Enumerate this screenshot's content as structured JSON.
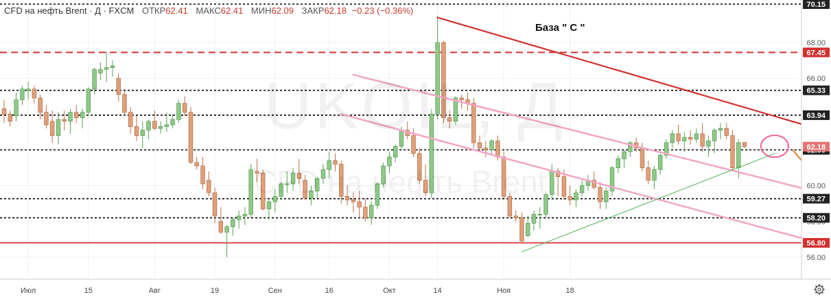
{
  "header": {
    "symbol": "CFD на нефть Brent · Д · FXCM",
    "open_label": "ОТКР",
    "open_value": "62.41",
    "high_label": "МАКС",
    "high_value": "62.41",
    "low_label": "МИН",
    "low_value": "62.09",
    "close_label": "ЗАКР",
    "close_value": "62.18",
    "change": "−0.23 (−0.36%)"
  },
  "watermark": {
    "ticker": "UKOIL, Д",
    "name": "CFD на нефть Brent"
  },
  "annotation": "База \" С \"",
  "colors": {
    "up": "#8fc98a",
    "down": "#e0a07a",
    "candle_border_up": "#5a9f55",
    "candle_border_down": "#b8704a",
    "resistance": "#d32f2f",
    "channel": "#f4a6c6",
    "support_trend": "#4caf50",
    "arrow": "#e67e22",
    "grid": "#f0f0f0"
  },
  "chart_data": {
    "type": "candlestick",
    "title": "CFD на нефть Brent · Д · FXCM",
    "ylim": [
      55.0,
      70.15
    ],
    "y_ticks": [
      56.0,
      58.0,
      60.0,
      62.0,
      64.0,
      66.0,
      68.0
    ],
    "x_tick_labels": [
      {
        "label": "Июл",
        "index": 4
      },
      {
        "label": "15",
        "index": 14
      },
      {
        "label": "Авг",
        "index": 25
      },
      {
        "label": "19",
        "index": 35
      },
      {
        "label": "Сен",
        "index": 45
      },
      {
        "label": "16",
        "index": 54
      },
      {
        "label": "Окт",
        "index": 64
      },
      {
        "label": "14",
        "index": 72
      },
      {
        "label": "Ноя",
        "index": 83
      },
      {
        "label": "18",
        "index": 94
      }
    ],
    "horizontal_levels": [
      {
        "value": 70.15,
        "style": "dotted",
        "color": "#000000",
        "label": "70.15"
      },
      {
        "value": 67.45,
        "style": "dashed",
        "color": "#d32f2f",
        "label": "67.45"
      },
      {
        "value": 65.33,
        "style": "dotted",
        "color": "#000000",
        "label": "65.33"
      },
      {
        "value": 63.94,
        "style": "dotted",
        "color": "#000000",
        "label": "63.94"
      },
      {
        "value": 62.0,
        "style": "dotted",
        "color": "#000000",
        "label": "62.00"
      },
      {
        "value": 59.27,
        "style": "dotted",
        "color": "#000000",
        "label": "59.27"
      },
      {
        "value": 58.2,
        "style": "dotted",
        "color": "#000000",
        "label": "58.20"
      },
      {
        "value": 56.8,
        "style": "solid",
        "color": "#d32f2f",
        "label": "56.80"
      }
    ],
    "last_price": {
      "value": 62.18,
      "label": "62.18"
    },
    "candles": [
      [
        64.3,
        64.8,
        63.5,
        64.0
      ],
      [
        64.0,
        64.2,
        63.3,
        63.6
      ],
      [
        63.9,
        65.2,
        63.6,
        64.8
      ],
      [
        64.8,
        65.6,
        64.5,
        65.4
      ],
      [
        65.3,
        65.8,
        64.8,
        65.4
      ],
      [
        65.4,
        65.6,
        64.6,
        64.9
      ],
      [
        64.9,
        65.1,
        63.7,
        64.1
      ],
      [
        64.1,
        64.5,
        63.2,
        63.4
      ],
      [
        63.6,
        64.2,
        62.4,
        62.8
      ],
      [
        62.8,
        64.1,
        62.3,
        63.7
      ],
      [
        63.7,
        64.2,
        63.1,
        63.6
      ],
      [
        63.6,
        64.3,
        62.9,
        64.1
      ],
      [
        64.1,
        64.5,
        63.5,
        63.8
      ],
      [
        63.8,
        64.3,
        63.2,
        64.1
      ],
      [
        64.1,
        65.5,
        63.9,
        65.4
      ],
      [
        65.4,
        66.6,
        65.1,
        66.5
      ],
      [
        66.3,
        66.9,
        65.9,
        66.5
      ],
      [
        66.5,
        67.5,
        65.8,
        66.6
      ],
      [
        66.6,
        67.0,
        66.1,
        66.7
      ],
      [
        66.0,
        66.3,
        64.7,
        65.1
      ],
      [
        65.1,
        65.3,
        63.9,
        64.1
      ],
      [
        64.1,
        64.4,
        62.9,
        63.3
      ],
      [
        63.3,
        63.9,
        62.5,
        62.8
      ],
      [
        62.8,
        63.6,
        62.1,
        63.1
      ],
      [
        63.1,
        63.7,
        62.6,
        63.6
      ],
      [
        63.6,
        64.2,
        63.1,
        63.2
      ],
      [
        63.2,
        63.6,
        62.9,
        63.3
      ],
      [
        63.3,
        64.1,
        63.0,
        63.4
      ],
      [
        63.4,
        64.0,
        63.2,
        63.7
      ],
      [
        63.7,
        64.8,
        63.5,
        64.6
      ],
      [
        64.6,
        65.0,
        63.9,
        64.1
      ],
      [
        64.1,
        64.4,
        61.2,
        61.3
      ],
      [
        61.3,
        61.6,
        60.9,
        61.1
      ],
      [
        61.1,
        61.6,
        59.8,
        60.1
      ],
      [
        60.3,
        60.8,
        59.4,
        59.6
      ],
      [
        59.6,
        59.9,
        57.9,
        58.3
      ],
      [
        58.0,
        58.8,
        57.3,
        57.4
      ],
      [
        57.4,
        57.8,
        56.0,
        57.7
      ],
      [
        57.7,
        58.2,
        57.2,
        58.1
      ],
      [
        58.1,
        58.6,
        57.6,
        58.3
      ],
      [
        58.3,
        58.8,
        57.8,
        58.4
      ],
      [
        58.4,
        61.2,
        58.2,
        60.9
      ],
      [
        60.8,
        61.5,
        60.2,
        60.7
      ],
      [
        60.7,
        60.9,
        58.6,
        58.7
      ],
      [
        58.7,
        59.2,
        58.1,
        59.1
      ],
      [
        59.1,
        59.8,
        58.5,
        59.4
      ],
      [
        59.4,
        60.2,
        59.2,
        60.1
      ],
      [
        60.1,
        60.8,
        59.6,
        60.1
      ],
      [
        60.1,
        61.0,
        59.7,
        60.7
      ],
      [
        60.7,
        61.5,
        60.1,
        60.4
      ],
      [
        60.3,
        60.6,
        59.2,
        59.3
      ],
      [
        59.3,
        60.0,
        58.9,
        59.7
      ],
      [
        59.7,
        60.5,
        59.3,
        60.4
      ],
      [
        60.4,
        61.2,
        60.1,
        60.9
      ],
      [
        60.9,
        61.9,
        60.4,
        61.4
      ],
      [
        61.4,
        61.8,
        60.8,
        61.2
      ],
      [
        61.2,
        61.4,
        59.0,
        59.4
      ],
      [
        59.4,
        60.0,
        58.9,
        59.2
      ],
      [
        59.2,
        59.6,
        58.5,
        59.1
      ],
      [
        59.1,
        59.7,
        58.2,
        58.8
      ],
      [
        58.8,
        59.3,
        58.0,
        58.2
      ],
      [
        58.2,
        59.1,
        57.8,
        58.9
      ],
      [
        58.9,
        60.2,
        58.7,
        60.1
      ],
      [
        60.1,
        61.3,
        59.9,
        61.1
      ],
      [
        61.1,
        61.9,
        60.7,
        61.6
      ],
      [
        61.6,
        62.3,
        61.3,
        62.2
      ],
      [
        62.2,
        63.3,
        62.0,
        63.1
      ],
      [
        63.1,
        63.6,
        62.6,
        62.8
      ],
      [
        62.8,
        63.2,
        61.6,
        61.8
      ],
      [
        61.8,
        62.1,
        60.1,
        60.3
      ],
      [
        60.3,
        61.2,
        59.4,
        59.6
      ],
      [
        59.6,
        64.3,
        59.3,
        64.0
      ],
      [
        64.0,
        69.5,
        63.7,
        68.0
      ],
      [
        68.0,
        68.1,
        63.5,
        63.8
      ],
      [
        63.8,
        64.2,
        63.2,
        63.6
      ],
      [
        63.6,
        65.0,
        63.4,
        64.9
      ],
      [
        64.9,
        65.1,
        64.3,
        64.8
      ],
      [
        64.8,
        65.2,
        64.2,
        64.6
      ],
      [
        64.6,
        64.9,
        62.1,
        62.4
      ],
      [
        62.4,
        62.8,
        61.9,
        62.1
      ],
      [
        62.1,
        62.5,
        61.6,
        62.0
      ],
      [
        62.0,
        62.6,
        61.7,
        62.5
      ],
      [
        62.5,
        62.8,
        61.4,
        61.6
      ],
      [
        61.6,
        61.9,
        59.3,
        59.4
      ],
      [
        59.4,
        59.6,
        58.2,
        58.3
      ],
      [
        58.3,
        58.6,
        58.0,
        58.2
      ],
      [
        58.2,
        58.5,
        56.8,
        56.9
      ],
      [
        57.2,
        58.3,
        57.1,
        57.9
      ],
      [
        57.9,
        58.6,
        57.5,
        58.4
      ],
      [
        58.4,
        58.8,
        57.6,
        58.4
      ],
      [
        58.4,
        59.6,
        58.2,
        59.5
      ],
      [
        59.5,
        61.2,
        59.2,
        60.8
      ],
      [
        60.8,
        61.0,
        59.4,
        60.5
      ],
      [
        60.5,
        60.9,
        59.2,
        59.4
      ],
      [
        59.4,
        60.0,
        58.9,
        59.2
      ],
      [
        59.2,
        59.8,
        58.8,
        59.6
      ],
      [
        59.6,
        60.3,
        59.4,
        60.0
      ],
      [
        60.0,
        60.6,
        59.7,
        60.3
      ],
      [
        60.3,
        60.8,
        59.8,
        59.9
      ],
      [
        59.9,
        60.2,
        58.7,
        59.1
      ],
      [
        59.1,
        59.9,
        58.7,
        59.7
      ],
      [
        59.7,
        61.1,
        59.4,
        61.0
      ],
      [
        61.0,
        61.7,
        60.7,
        61.5
      ],
      [
        61.5,
        62.0,
        61.0,
        61.9
      ],
      [
        61.9,
        62.5,
        61.6,
        62.4
      ],
      [
        62.4,
        62.7,
        61.9,
        62.1
      ],
      [
        62.1,
        62.4,
        60.8,
        61.0
      ],
      [
        61.0,
        61.4,
        60.1,
        60.3
      ],
      [
        60.3,
        61.1,
        59.8,
        60.9
      ],
      [
        60.9,
        61.8,
        60.6,
        61.7
      ],
      [
        61.7,
        62.6,
        61.5,
        62.4
      ],
      [
        62.4,
        63.1,
        62.1,
        62.9
      ],
      [
        62.9,
        63.4,
        62.3,
        62.5
      ],
      [
        62.5,
        63.0,
        61.9,
        62.7
      ],
      [
        62.7,
        63.1,
        62.3,
        62.6
      ],
      [
        62.6,
        63.2,
        62.4,
        62.9
      ],
      [
        62.9,
        63.5,
        61.9,
        62.2
      ],
      [
        62.2,
        62.8,
        61.6,
        62.5
      ],
      [
        62.5,
        63.2,
        61.8,
        63.1
      ],
      [
        63.1,
        63.5,
        62.6,
        63.2
      ],
      [
        63.2,
        63.5,
        62.6,
        62.8
      ],
      [
        62.8,
        63.1,
        60.9,
        61.0
      ],
      [
        61.0,
        62.6,
        60.4,
        62.4
      ],
      [
        62.41,
        62.41,
        62.09,
        62.18
      ]
    ],
    "trendlines": [
      {
        "name": "resistance",
        "color": "#d32f2f",
        "from": {
          "index": 72,
          "value": 69.4
        },
        "to": {
          "index": 141,
          "value": 62.6
        }
      },
      {
        "name": "channel-upper",
        "color": "#f4a6c6",
        "from": {
          "index": 58,
          "value": 66.2
        },
        "to": {
          "index": 145,
          "value": 58.8
        }
      },
      {
        "name": "channel-lower",
        "color": "#f4a6c6",
        "from": {
          "index": 56,
          "value": 64.0
        },
        "to": {
          "index": 142,
          "value": 56.2
        }
      },
      {
        "name": "support-trend",
        "color": "#4caf50",
        "from": {
          "index": 86,
          "value": 56.3
        },
        "to": {
          "index": 128,
          "value": 61.8
        }
      }
    ],
    "forecast_arrow": {
      "from": {
        "index": 131,
        "value": 62.0
      },
      "to": {
        "index": 141,
        "value": 58.0
      }
    },
    "highlight_circle": {
      "index": 128,
      "value": 62.2
    }
  }
}
